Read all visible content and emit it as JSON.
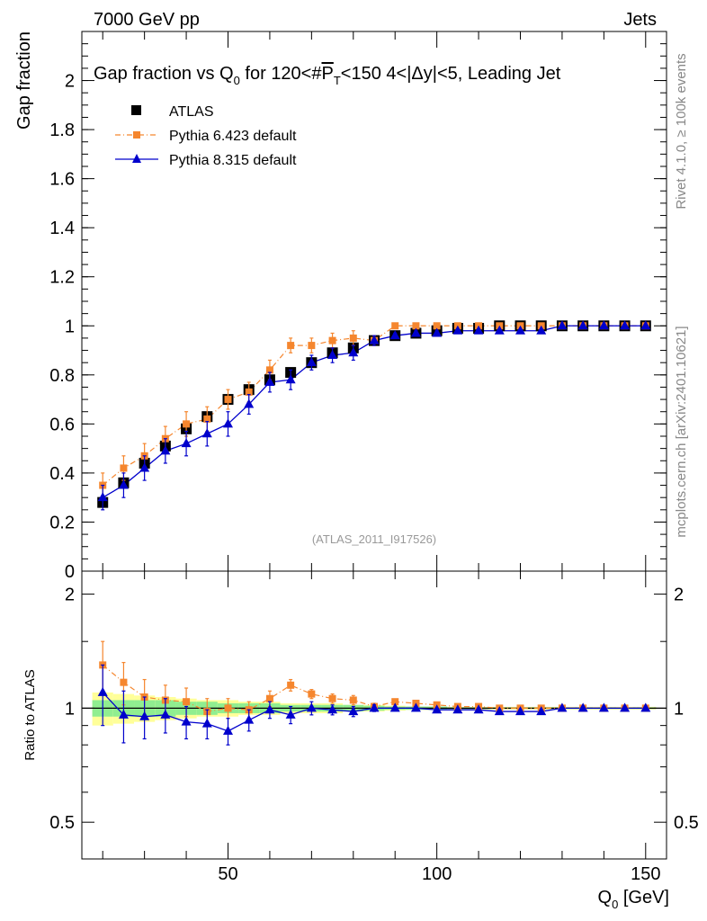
{
  "header": {
    "left": "7000 GeV pp",
    "right": "Jets"
  },
  "side_labels": {
    "rivet": "Rivet 4.1.0, ≥ 100k events",
    "mcplots": "mcplots.cern.ch [arXiv:2401.10621]"
  },
  "chart_data": {
    "type": "scatter",
    "title": "Gap fraction vs Q0 for 120<#PT<150  4<|Δy|<5, Leading Jet",
    "title_parts": {
      "pre": "Gap fraction vs Q",
      "q_sub": "0",
      "mid": " for 120<#",
      "pt": "P",
      "pt_sub": "T",
      "post": "<150  4<|Δy|<5, Leading Jet"
    },
    "xlabel": "Q0 [GeV]",
    "xlabel_parts": {
      "main": "Q",
      "sub": "0",
      "unit": " [GeV]"
    },
    "ylabel": "Gap fraction",
    "ratio_ylabel": "Ratio to ATLAS",
    "analysis_id": "(ATLAS_2011_I917526)",
    "xlim": [
      15,
      155
    ],
    "ylim": [
      0,
      2.2
    ],
    "ratio_ylim": [
      0.4,
      2.3
    ],
    "x_ticks": [
      50,
      100,
      150
    ],
    "x_tick_labels": [
      "50",
      "100",
      "150"
    ],
    "y_ticks": [
      0,
      0.2,
      0.4,
      0.6,
      0.8,
      1,
      1.2,
      1.4,
      1.6,
      1.8,
      2
    ],
    "y_tick_labels": [
      "0",
      "0.2",
      "0.4",
      "0.6",
      "0.8",
      "1",
      "1.2",
      "1.4",
      "1.6",
      "1.8",
      "2"
    ],
    "ratio_ticks": [
      0.5,
      1,
      2
    ],
    "ratio_tick_labels": [
      "0.5",
      "1",
      "2"
    ],
    "x": [
      20,
      25,
      30,
      35,
      40,
      45,
      50,
      55,
      60,
      65,
      70,
      75,
      80,
      85,
      90,
      95,
      100,
      105,
      110,
      115,
      120,
      125,
      130,
      135,
      140,
      145,
      150
    ],
    "series": [
      {
        "name": "ATLAS",
        "color": "#000000",
        "marker": "square",
        "values": [
          0.28,
          0.36,
          0.44,
          0.51,
          0.58,
          0.63,
          0.7,
          0.74,
          0.78,
          0.81,
          0.85,
          0.89,
          0.91,
          0.94,
          0.96,
          0.97,
          0.98,
          0.99,
          0.99,
          1.0,
          1.0,
          1.0,
          1.0,
          1.0,
          1.0,
          1.0,
          1.0
        ],
        "errors": [
          0.02,
          0.02,
          0.02,
          0.02,
          0.02,
          0.02,
          0.02,
          0.02,
          0.02,
          0.01,
          0.01,
          0.01,
          0.01,
          0.01,
          0.01,
          0.01,
          0.01,
          0.005,
          0.005,
          0.005,
          0.005,
          0.005,
          0.005,
          0.005,
          0.005,
          0.005,
          0.005
        ]
      },
      {
        "name": "Pythia 6.423 default",
        "color": "#f5862e",
        "marker": "square",
        "linestyle": "dashdot",
        "values": [
          0.35,
          0.42,
          0.47,
          0.54,
          0.6,
          0.62,
          0.7,
          0.73,
          0.82,
          0.92,
          0.92,
          0.94,
          0.95,
          0.94,
          1.0,
          1.0,
          1.0,
          1.0,
          1.0,
          1.0,
          1.0,
          1.0,
          1.0,
          1.0,
          1.0,
          1.0,
          1.0
        ],
        "errors": [
          0.05,
          0.05,
          0.05,
          0.05,
          0.05,
          0.05,
          0.04,
          0.04,
          0.04,
          0.03,
          0.03,
          0.03,
          0.03,
          0.02,
          0.01,
          0.01,
          0.01,
          0.005,
          0.005,
          0.005,
          0.005,
          0.005,
          0.005,
          0.005,
          0.005,
          0.005,
          0.005
        ]
      },
      {
        "name": "Pythia 8.315 default",
        "color": "#0000cc",
        "marker": "triangle",
        "linestyle": "solid",
        "values": [
          0.3,
          0.35,
          0.42,
          0.49,
          0.52,
          0.56,
          0.6,
          0.68,
          0.77,
          0.78,
          0.85,
          0.88,
          0.89,
          0.94,
          0.96,
          0.97,
          0.97,
          0.98,
          0.98,
          0.98,
          0.98,
          0.98,
          1.0,
          1.0,
          1.0,
          1.0,
          1.0
        ],
        "errors": [
          0.05,
          0.05,
          0.05,
          0.05,
          0.05,
          0.05,
          0.05,
          0.04,
          0.04,
          0.04,
          0.03,
          0.03,
          0.03,
          0.02,
          0.01,
          0.01,
          0.01,
          0.005,
          0.005,
          0.005,
          0.005,
          0.005,
          0.005,
          0.005,
          0.005,
          0.005,
          0.005
        ]
      }
    ],
    "ratio_series": [
      {
        "name": "Pythia 6.423 default",
        "values": [
          1.3,
          1.17,
          1.07,
          1.05,
          1.04,
          0.98,
          1.0,
          0.99,
          1.06,
          1.15,
          1.09,
          1.06,
          1.05,
          1.01,
          1.04,
          1.03,
          1.02,
          1.01,
          1.01,
          1.0,
          1.0,
          1.0,
          1.0,
          1.0,
          1.0,
          1.0,
          1.0
        ],
        "errors": [
          0.2,
          0.15,
          0.12,
          0.1,
          0.09,
          0.08,
          0.06,
          0.05,
          0.05,
          0.04,
          0.03,
          0.03,
          0.03,
          0.02,
          0.01,
          0.01,
          0.01,
          0.005,
          0.005,
          0.005,
          0.005,
          0.005,
          0.005,
          0.005,
          0.005,
          0.005,
          0.005
        ]
      },
      {
        "name": "Pythia 8.315 default",
        "values": [
          1.1,
          0.96,
          0.95,
          0.96,
          0.92,
          0.91,
          0.87,
          0.93,
          0.99,
          0.96,
          1.0,
          0.99,
          0.98,
          1.0,
          1.0,
          1.0,
          0.99,
          0.99,
          0.99,
          0.98,
          0.98,
          0.98,
          1.0,
          1.0,
          1.0,
          1.0,
          1.0
        ],
        "errors": [
          0.2,
          0.15,
          0.12,
          0.1,
          0.09,
          0.08,
          0.07,
          0.06,
          0.05,
          0.05,
          0.04,
          0.03,
          0.03,
          0.02,
          0.01,
          0.01,
          0.01,
          0.005,
          0.005,
          0.005,
          0.005,
          0.005,
          0.005,
          0.005,
          0.005,
          0.005,
          0.005
        ]
      }
    ],
    "ratio_bands": {
      "inner_color": "#90ee90",
      "outer_color": "#ffff99",
      "inner_halfwidth": [
        0.05,
        0.05,
        0.05,
        0.05,
        0.04,
        0.04,
        0.03,
        0.03,
        0.03,
        0.02,
        0.02,
        0.02,
        0.02,
        0.015,
        0.01,
        0.01,
        0.01,
        0.005,
        0.005,
        0.005,
        0.005,
        0.005,
        0.005,
        0.005,
        0.005,
        0.005,
        0.005
      ],
      "outer_halfwidth": [
        0.1,
        0.09,
        0.08,
        0.07,
        0.06,
        0.05,
        0.05,
        0.04,
        0.04,
        0.03,
        0.03,
        0.03,
        0.02,
        0.02,
        0.015,
        0.01,
        0.01,
        0.008,
        0.008,
        0.008,
        0.008,
        0.008,
        0.008,
        0.008,
        0.008,
        0.008,
        0.008
      ]
    },
    "legend": [
      "ATLAS",
      "Pythia 6.423 default",
      "Pythia 8.315 default"
    ],
    "legend_position": "top-left"
  }
}
